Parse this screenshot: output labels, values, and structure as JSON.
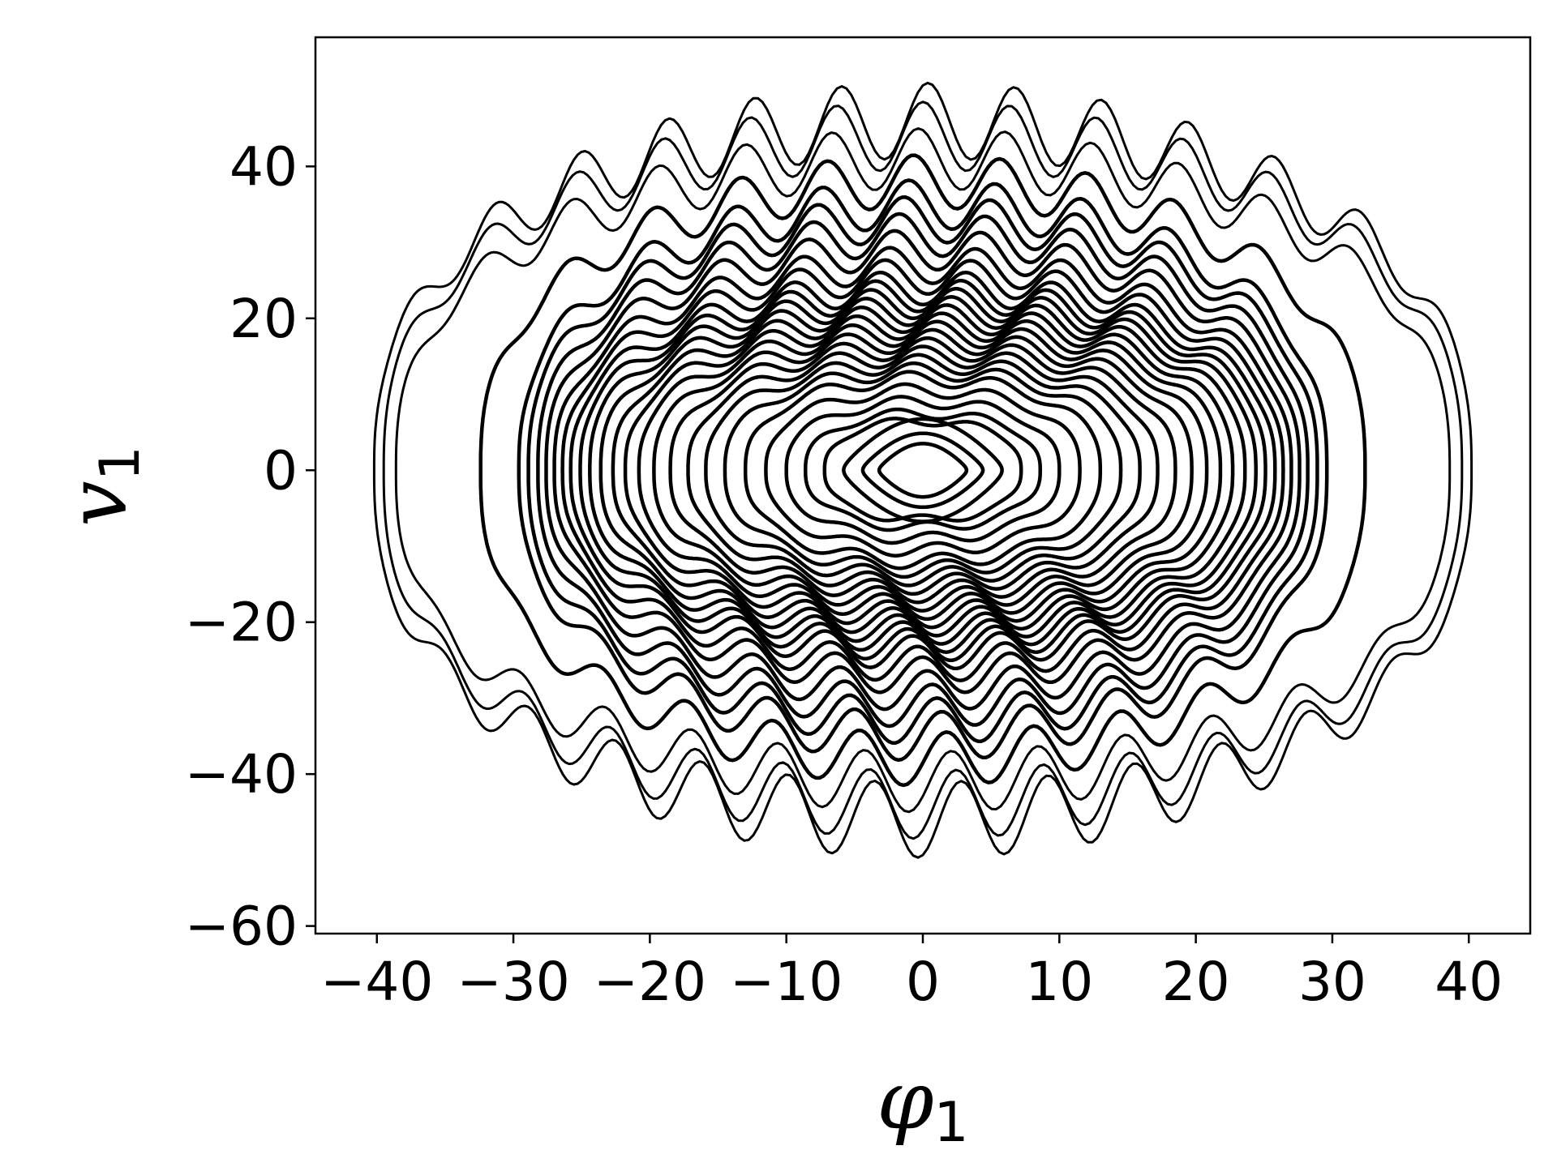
{
  "chart_data": {
    "type": "scatter",
    "title": "",
    "xlabel": "φ",
    "xlabel_subscript": "1",
    "ylabel": "v",
    "ylabel_subscript": "1",
    "xlim": [
      -44.5,
      44.5
    ],
    "ylim": [
      -61,
      57
    ],
    "xticks": [
      -40,
      -30,
      -20,
      -10,
      0,
      10,
      20,
      30,
      40
    ],
    "xtick_labels": [
      "−40",
      "−30",
      "−20",
      "−10",
      "0",
      "10",
      "20",
      "30",
      "40"
    ],
    "yticks": [
      -60,
      -40,
      -20,
      0,
      20,
      40
    ],
    "ytick_labels": [
      "−60",
      "−40",
      "−20",
      "0",
      "20",
      "40"
    ],
    "grid": false,
    "legend": "none",
    "marker_color": "#000000",
    "series": [
      {
        "description_points": "closed phase-space orbits; each orbit given by its phi amplitude, v amplitude and ripple depth",
        "orbits": [
          {
            "phi_amp": 40.2,
            "v_amp": 46,
            "ripple": 5.0
          },
          {
            "phi_amp": 39.5,
            "v_amp": 44,
            "ripple": 4.5
          },
          {
            "phi_amp": 38.6,
            "v_amp": 41,
            "ripple": 4.0
          },
          {
            "phi_amp": 32.4,
            "v_amp": 38,
            "ripple": 3.5
          },
          {
            "phi_amp": 29.6,
            "v_amp": 35,
            "ripple": 3.2
          },
          {
            "phi_amp": 28.9,
            "v_amp": 33,
            "ripple": 3.0
          },
          {
            "phi_amp": 28.2,
            "v_amp": 31,
            "ripple": 2.8
          },
          {
            "phi_amp": 27.6,
            "v_amp": 29,
            "ripple": 2.6
          },
          {
            "phi_amp": 27.0,
            "v_amp": 27,
            "ripple": 2.4
          },
          {
            "phi_amp": 26.4,
            "v_amp": 25.5,
            "ripple": 2.3
          },
          {
            "phi_amp": 25.8,
            "v_amp": 24,
            "ripple": 2.2
          },
          {
            "phi_amp": 25.1,
            "v_amp": 23,
            "ripple": 2.1
          },
          {
            "phi_amp": 24.4,
            "v_amp": 22,
            "ripple": 2.0
          },
          {
            "phi_amp": 23.6,
            "v_amp": 21,
            "ripple": 1.9
          },
          {
            "phi_amp": 22.7,
            "v_amp": 20,
            "ripple": 1.8
          },
          {
            "phi_amp": 21.8,
            "v_amp": 19,
            "ripple": 1.7
          },
          {
            "phi_amp": 20.8,
            "v_amp": 18,
            "ripple": 1.6
          },
          {
            "phi_amp": 19.7,
            "v_amp": 17,
            "ripple": 1.5
          },
          {
            "phi_amp": 18.5,
            "v_amp": 16,
            "ripple": 1.4
          },
          {
            "phi_amp": 17.2,
            "v_amp": 15,
            "ripple": 1.3
          },
          {
            "phi_amp": 15.9,
            "v_amp": 14,
            "ripple": 1.2
          },
          {
            "phi_amp": 14.5,
            "v_amp": 13,
            "ripple": 1.1
          },
          {
            "phi_amp": 13.0,
            "v_amp": 12,
            "ripple": 1.0
          },
          {
            "phi_amp": 11.5,
            "v_amp": 10.5,
            "ripple": 0.9
          },
          {
            "phi_amp": 10.0,
            "v_amp": 9,
            "ripple": 0.8
          },
          {
            "phi_amp": 8.6,
            "v_amp": 7.5,
            "ripple": 0.7
          },
          {
            "phi_amp": 7.2,
            "v_amp": 6.5,
            "ripple": 0.6
          },
          {
            "phi_amp": 5.8,
            "v_amp": 5,
            "ripple": 0.5
          },
          {
            "phi_amp": 4.4,
            "v_amp": 3.6,
            "ripple": 0.4
          },
          {
            "phi_amp": 3.2,
            "v_amp": 2.6,
            "ripple": 0.3
          }
        ]
      }
    ]
  }
}
